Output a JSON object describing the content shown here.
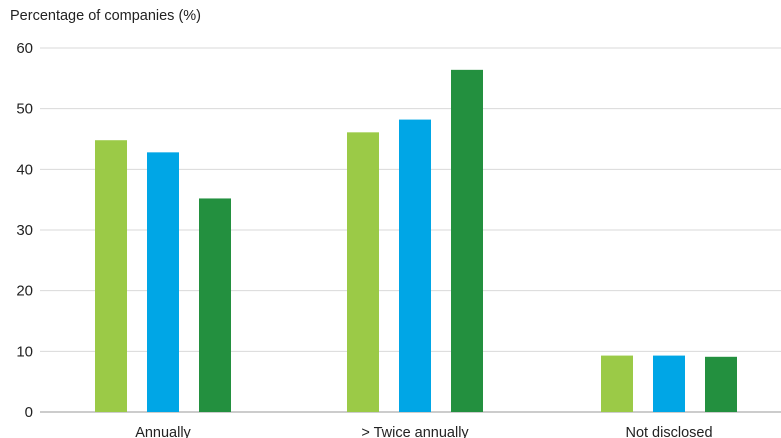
{
  "chart_data": {
    "type": "bar",
    "title": "Percentage of companies (%)",
    "xlabel": "",
    "ylabel": "",
    "categories": [
      "Annually",
      "> Twice annually",
      "Not disclosed"
    ],
    "series": [
      {
        "values": [
          44.8,
          46.1,
          9.3
        ],
        "color": "#9bca47"
      },
      {
        "values": [
          42.8,
          48.2,
          9.3
        ],
        "color": "#00a6e6"
      },
      {
        "values": [
          35.2,
          56.4,
          9.1
        ],
        "color": "#23903f"
      }
    ],
    "ylim": [
      0,
      60
    ],
    "yticks": [
      0,
      10,
      20,
      30,
      40,
      50,
      60
    ],
    "grid": true,
    "legend": "none"
  }
}
